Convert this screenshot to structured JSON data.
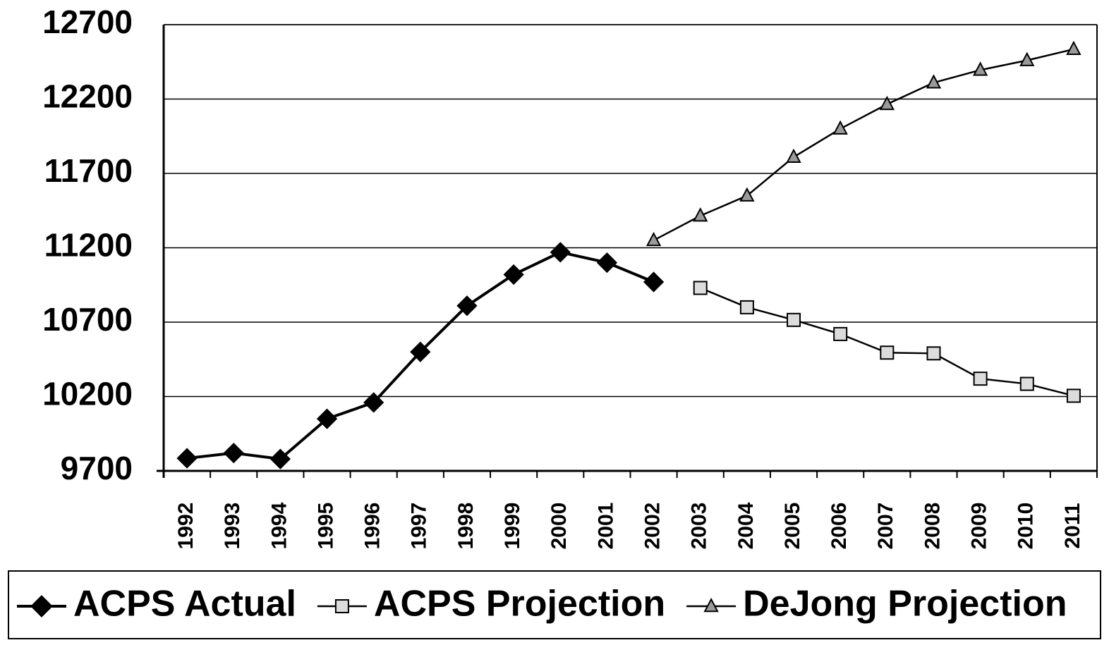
{
  "chart_data": {
    "type": "line",
    "categories": [
      "1992",
      "1993",
      "1994",
      "1995",
      "1996",
      "1997",
      "1998",
      "1999",
      "2000",
      "2001",
      "2002",
      "2003",
      "2004",
      "2005",
      "2006",
      "2007",
      "2008",
      "2009",
      "2010",
      "2011"
    ],
    "series": [
      {
        "name": "ACPS Actual",
        "color": "#000000",
        "marker": "diamond",
        "marker_fill": "#000000",
        "values": [
          9785,
          9820,
          9780,
          10050,
          10160,
          10500,
          10810,
          11020,
          11170,
          11100,
          10970,
          null,
          null,
          null,
          null,
          null,
          null,
          null,
          null,
          null
        ]
      },
      {
        "name": "ACPS Projection",
        "color": "#000000",
        "marker": "square",
        "marker_fill": "#dcdcdc",
        "values": [
          null,
          null,
          null,
          null,
          null,
          null,
          null,
          null,
          null,
          null,
          null,
          10930,
          10800,
          10715,
          10620,
          10495,
          10490,
          10320,
          10285,
          10205
        ]
      },
      {
        "name": "DeJong Projection",
        "color": "#000000",
        "marker": "triangle",
        "marker_fill": "#9a9a9a",
        "values": [
          null,
          null,
          null,
          null,
          null,
          null,
          null,
          null,
          null,
          null,
          11250,
          11415,
          11550,
          11810,
          12000,
          12165,
          12310,
          12395,
          12460,
          12535
        ]
      }
    ],
    "ylim": [
      9700,
      12700
    ],
    "yticks": [
      9700,
      10200,
      10700,
      11200,
      11700,
      12200,
      12700
    ],
    "grid": true,
    "legend": "bottom"
  }
}
